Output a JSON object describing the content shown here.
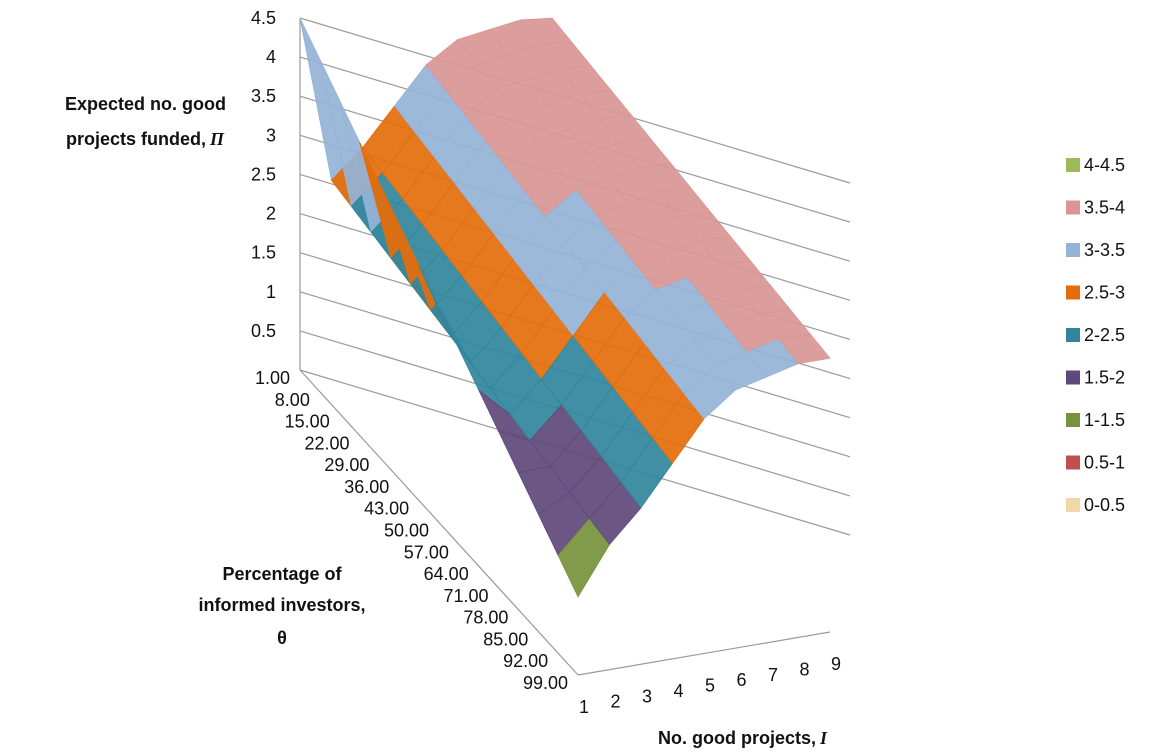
{
  "chart_data": {
    "type": "surface",
    "z_axis": {
      "title": "Expected no. good projects funded,",
      "title_symbol": "Π",
      "ticks": [
        "0.5",
        "1",
        "1.5",
        "2",
        "2.5",
        "3",
        "3.5",
        "4",
        "4.5"
      ],
      "range": [
        0,
        4.5
      ]
    },
    "y_axis": {
      "title": "Percentage of informed investors,",
      "title_symbol": "θ",
      "ticks": [
        "1.00",
        "8.00",
        "15.00",
        "22.00",
        "29.00",
        "36.00",
        "43.00",
        "50.00",
        "57.00",
        "64.00",
        "71.00",
        "78.00",
        "85.00",
        "92.00",
        "99.00"
      ]
    },
    "x_axis": {
      "title": "No. good projects,",
      "title_symbol": "I",
      "ticks": [
        "1",
        "2",
        "3",
        "4",
        "5",
        "6",
        "7",
        "8",
        "9"
      ]
    },
    "bands": [
      {
        "name": "4-4.5",
        "color": "#9bbb59"
      },
      {
        "name": "3.5-4",
        "color": "#d99694"
      },
      {
        "name": "3-3.5",
        "color": "#95b3d7"
      },
      {
        "name": "2.5-3",
        "color": "#e46c0a"
      },
      {
        "name": "2-2.5",
        "color": "#31859c"
      },
      {
        "name": "1.5-2",
        "color": "#5f497a"
      },
      {
        "name": "1-1.5",
        "color": "#77933c"
      },
      {
        "name": "0.5-1",
        "color": "#c0504d"
      },
      {
        "name": "0-0.5",
        "color": "#f0d8a8"
      }
    ],
    "front_edge_values": {
      "theta": "99.00",
      "I": [
        1,
        2,
        3,
        4,
        5,
        6,
        7,
        8,
        9
      ],
      "Pi": [
        1.0,
        1.6,
        2.0,
        2.5,
        3.0,
        3.3,
        3.4,
        3.5,
        3.5
      ]
    },
    "peak": {
      "theta": "1.00",
      "I": 1,
      "Pi": 4.5
    }
  }
}
